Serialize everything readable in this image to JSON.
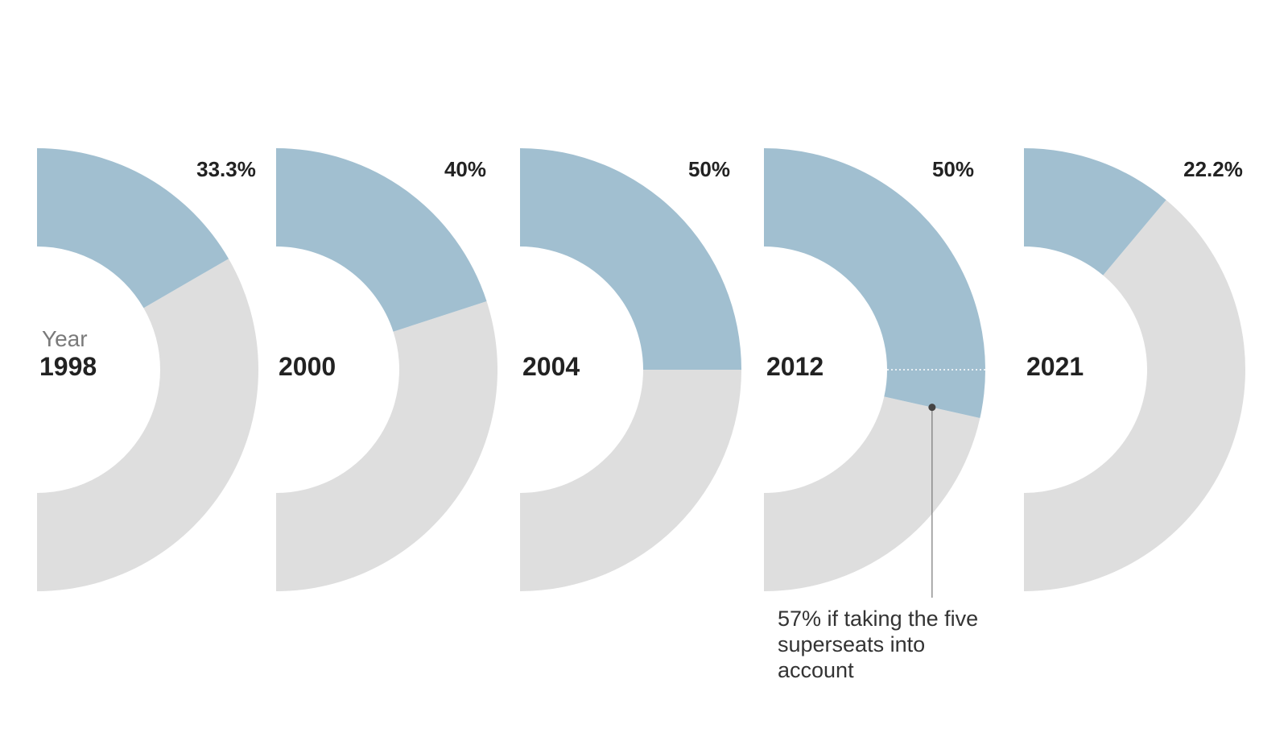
{
  "chart_data": {
    "type": "pie",
    "variant": "half-donut",
    "year_caption": "Year",
    "colors": {
      "share": "#a1bfd0",
      "rest": "#dedede"
    },
    "series": [
      {
        "year": "1998",
        "share": 33.3,
        "label": "33.3%"
      },
      {
        "year": "2000",
        "share": 40,
        "label": "40%"
      },
      {
        "year": "2004",
        "share": 50,
        "label": "50%"
      },
      {
        "year": "2012",
        "share": 50,
        "label": "50%",
        "alt_share": 57
      },
      {
        "year": "2021",
        "share": 22.2,
        "label": "22.2%"
      }
    ],
    "annotation": {
      "year": "2012",
      "text": "57% if taking the five superseats into account"
    }
  }
}
